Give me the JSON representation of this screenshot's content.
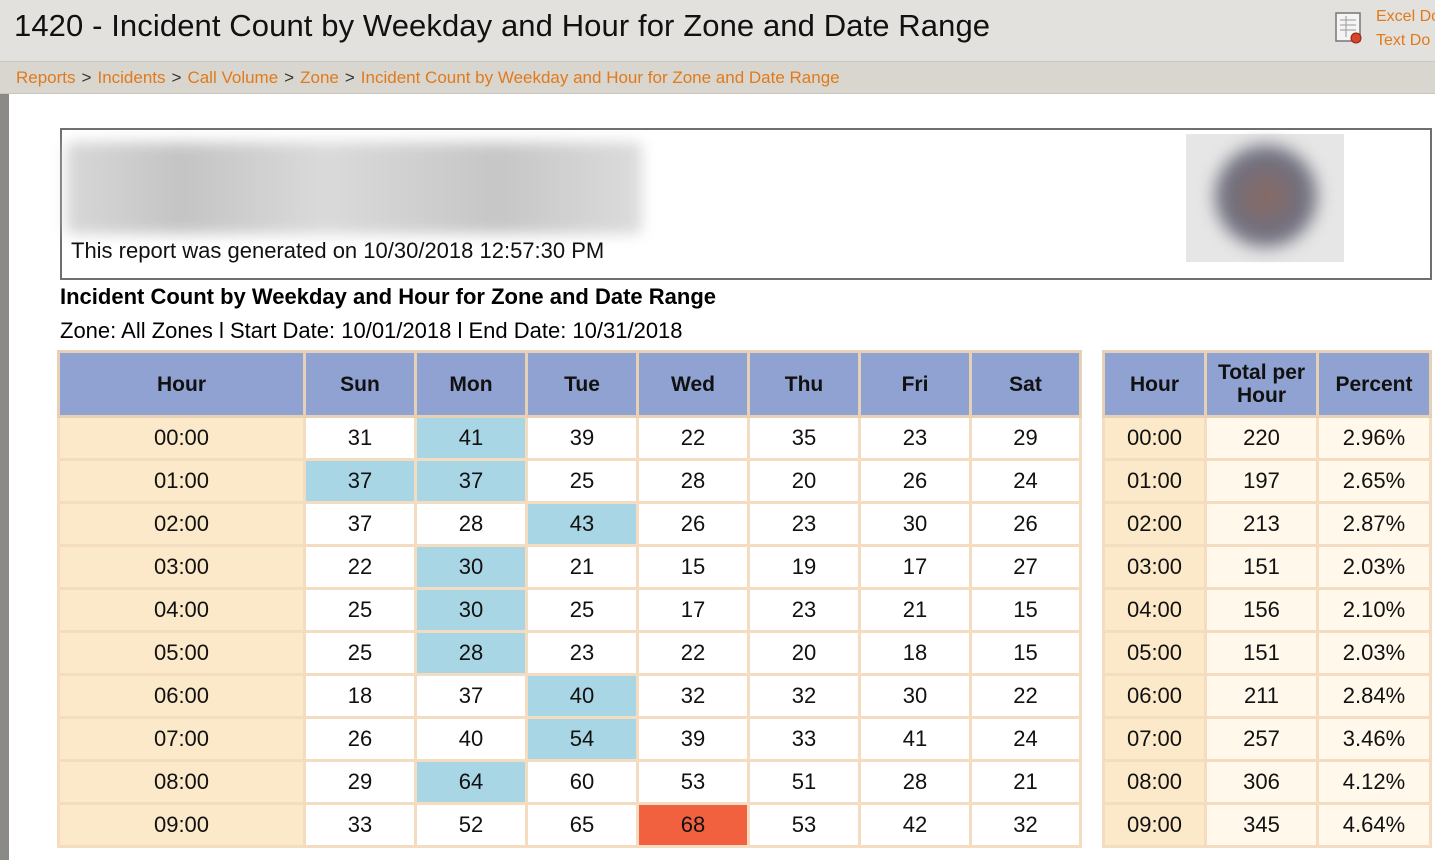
{
  "header": {
    "title": "1420 - Incident Count by Weekday and Hour for Zone and Date Range",
    "export_links": [
      "Excel Do",
      "Text Do"
    ]
  },
  "breadcrumb": [
    "Reports",
    "Incidents",
    "Call Volume",
    "Zone",
    "Incident Count by Weekday and Hour for Zone and Date Range"
  ],
  "report": {
    "generated": "This report was generated on 10/30/2018 12:57:30 PM",
    "title": "Incident Count by Weekday and Hour for Zone and Date Range",
    "params": "Zone: All Zones l Start Date: 10/01/2018 l End Date: 10/31/2018"
  },
  "main_table": {
    "headers": [
      "Hour",
      "Sun",
      "Mon",
      "Tue",
      "Wed",
      "Thu",
      "Fri",
      "Sat"
    ],
    "rows": [
      [
        "00:00",
        "31",
        "41",
        "39",
        "22",
        "35",
        "23",
        "29"
      ],
      [
        "01:00",
        "37",
        "37",
        "25",
        "28",
        "20",
        "26",
        "24"
      ],
      [
        "02:00",
        "37",
        "28",
        "43",
        "26",
        "23",
        "30",
        "26"
      ],
      [
        "03:00",
        "22",
        "30",
        "21",
        "15",
        "19",
        "17",
        "27"
      ],
      [
        "04:00",
        "25",
        "30",
        "25",
        "17",
        "23",
        "21",
        "15"
      ],
      [
        "05:00",
        "25",
        "28",
        "23",
        "22",
        "20",
        "18",
        "15"
      ],
      [
        "06:00",
        "18",
        "37",
        "40",
        "32",
        "32",
        "30",
        "22"
      ],
      [
        "07:00",
        "26",
        "40",
        "54",
        "39",
        "33",
        "41",
        "24"
      ],
      [
        "08:00",
        "29",
        "64",
        "60",
        "53",
        "51",
        "28",
        "21"
      ],
      [
        "09:00",
        "33",
        "52",
        "65",
        "68",
        "53",
        "42",
        "32"
      ]
    ],
    "highlight_cells": [
      [
        0,
        2
      ],
      [
        1,
        1
      ],
      [
        1,
        2
      ],
      [
        2,
        3
      ],
      [
        3,
        2
      ],
      [
        4,
        2
      ],
      [
        5,
        2
      ],
      [
        6,
        3
      ],
      [
        7,
        3
      ],
      [
        8,
        2
      ]
    ],
    "max_cells": [
      [
        9,
        4
      ]
    ],
    "highlight_color": "#a9d6e4",
    "max_color": "#f2613f",
    "header_color": "#8fa2d2",
    "hour_column_color": "#fbe9c9"
  },
  "summary_table": {
    "headers": [
      "Hour",
      "Total per Hour",
      "Percent"
    ],
    "rows": [
      [
        "00:00",
        "220",
        "2.96%"
      ],
      [
        "01:00",
        "197",
        "2.65%"
      ],
      [
        "02:00",
        "213",
        "2.87%"
      ],
      [
        "03:00",
        "151",
        "2.03%"
      ],
      [
        "04:00",
        "156",
        "2.10%"
      ],
      [
        "05:00",
        "151",
        "2.03%"
      ],
      [
        "06:00",
        "211",
        "2.84%"
      ],
      [
        "07:00",
        "257",
        "3.46%"
      ],
      [
        "08:00",
        "306",
        "4.12%"
      ],
      [
        "09:00",
        "345",
        "4.64%"
      ]
    ]
  },
  "icons": {
    "export": "spreadsheet-export-icon",
    "logo": "agency-logo-blurred"
  }
}
